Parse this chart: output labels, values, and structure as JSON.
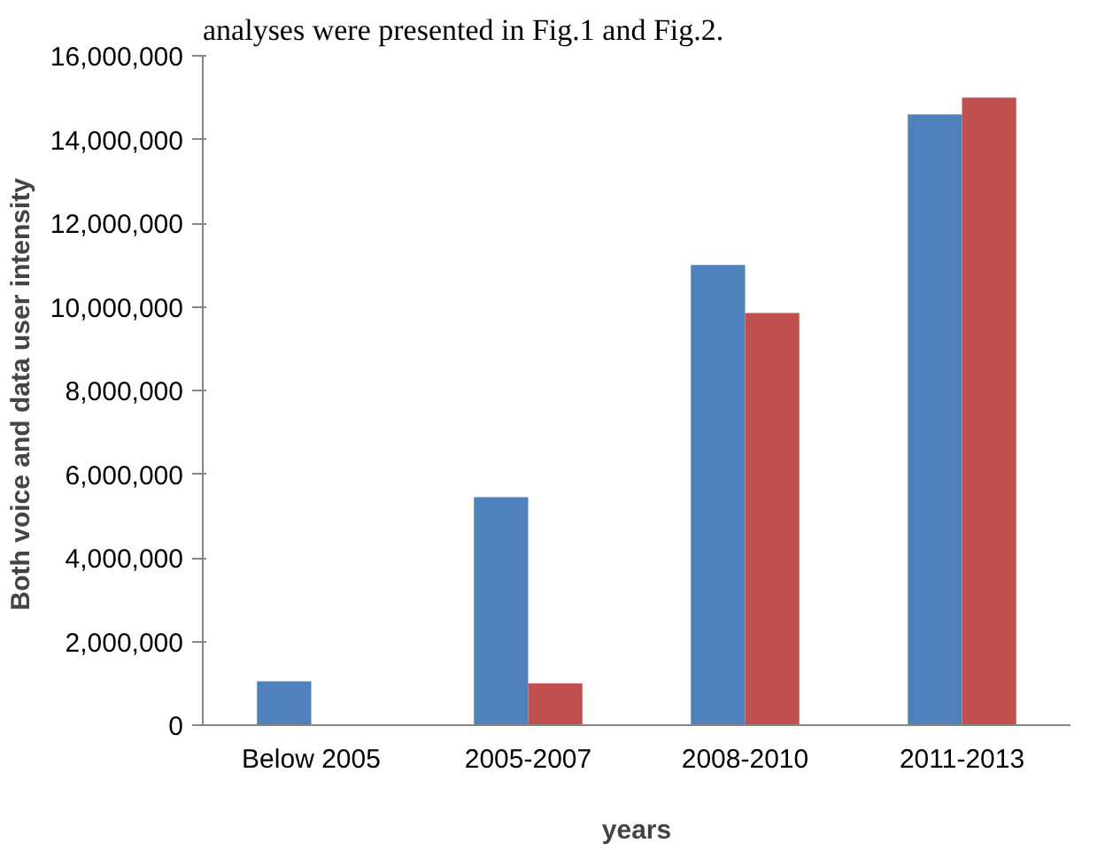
{
  "chart_data": {
    "type": "bar",
    "categories": [
      "Below 2005",
      "2005-2007",
      "2008-2010",
      "2011-2013"
    ],
    "series": [
      {
        "color": "#4f81bd",
        "values": [
          1050000,
          5450000,
          11000000,
          14600000
        ]
      },
      {
        "color": "#c0504d",
        "values": [
          0,
          1000000,
          9850000,
          15000000
        ]
      }
    ],
    "xlabel": "years",
    "ylabel": "Both voice and data user  intensity",
    "ylim": [
      0,
      16000000
    ],
    "yticks": [
      {
        "value": 0,
        "label": "0"
      },
      {
        "value": 2000000,
        "label": "2,000,000"
      },
      {
        "value": 4000000,
        "label": "4,000,000"
      },
      {
        "value": 6000000,
        "label": "6,000,000"
      },
      {
        "value": 8000000,
        "label": "8,000,000"
      },
      {
        "value": 10000000,
        "label": "10,000,000"
      },
      {
        "value": 12000000,
        "label": "12,000,000"
      },
      {
        "value": 14000000,
        "label": "14,000,000"
      },
      {
        "value": 16000000,
        "label": "16,000,000"
      }
    ],
    "annotations": [
      "analyses were presented in Fig.1 and Fig.2."
    ],
    "grid": false
  }
}
